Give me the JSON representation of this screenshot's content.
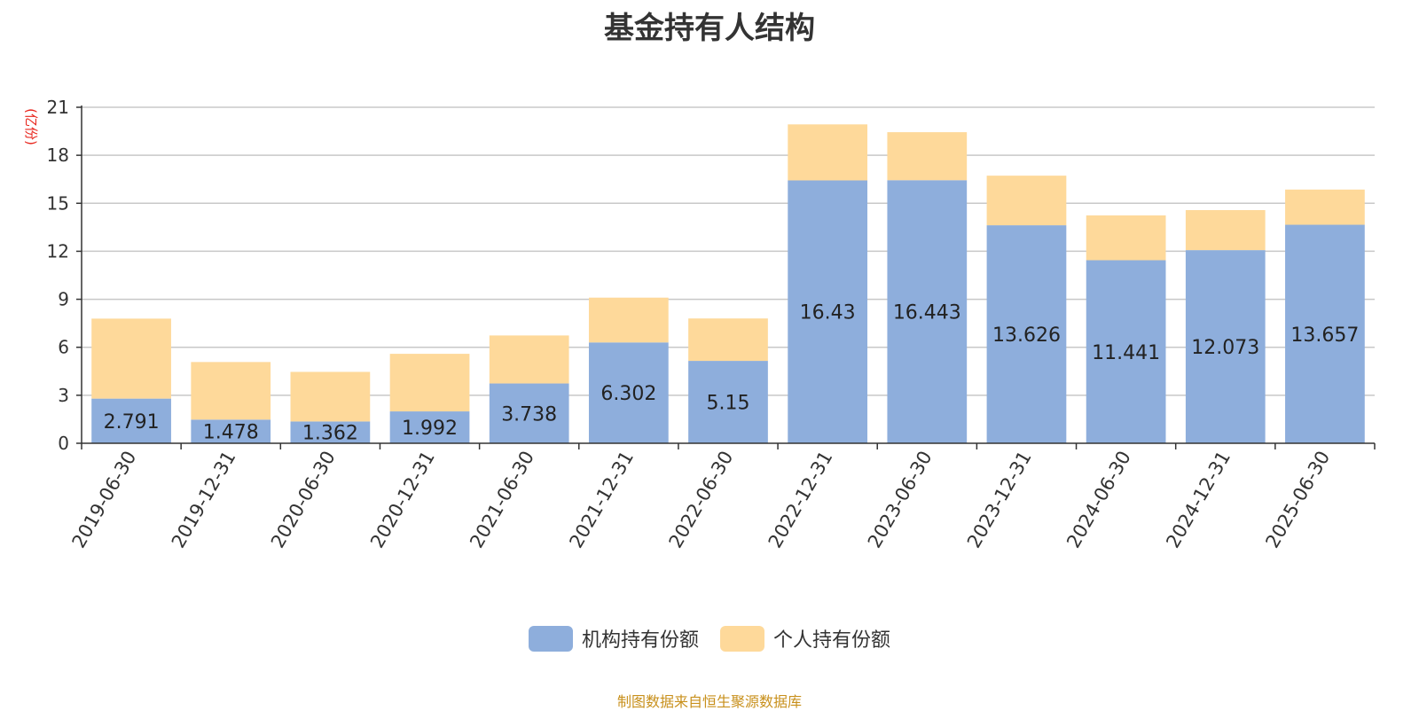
{
  "chart_data": {
    "type": "bar",
    "stacked": true,
    "title": "基金持有人结构",
    "ylabel": "(亿份)",
    "xlabel": "",
    "ylim": [
      0,
      21
    ],
    "yticks": [
      "0",
      "3",
      "6",
      "9",
      "12",
      "15",
      "18",
      "21"
    ],
    "grid": true,
    "legend_position": "bottom",
    "categories": [
      "2019-06-30",
      "2019-12-31",
      "2020-06-30",
      "2020-12-31",
      "2021-06-30",
      "2021-12-31",
      "2022-06-30",
      "2022-12-31",
      "2023-06-30",
      "2023-12-31",
      "2024-06-30",
      "2024-12-31",
      "2025-06-30"
    ],
    "series": [
      {
        "name": "机构持有份额",
        "color": "#8eaedc",
        "values": [
          2.791,
          1.478,
          1.362,
          1.992,
          3.738,
          6.302,
          5.15,
          16.43,
          16.443,
          13.626,
          11.441,
          12.073,
          13.657
        ],
        "labels": [
          "2.791",
          "1.478",
          "1.362",
          "1.992",
          "3.738",
          "6.302",
          "5.15",
          "16.43",
          "16.443",
          "13.626",
          "11.441",
          "12.073",
          "13.657"
        ]
      },
      {
        "name": "个人持有份额",
        "color": "#fed99a",
        "values": [
          5.0,
          3.6,
          3.1,
          3.6,
          3.0,
          2.8,
          2.65,
          3.5,
          3.0,
          3.1,
          2.8,
          2.5,
          2.2
        ]
      }
    ]
  },
  "source_note": "制图数据来自恒生聚源数据库"
}
